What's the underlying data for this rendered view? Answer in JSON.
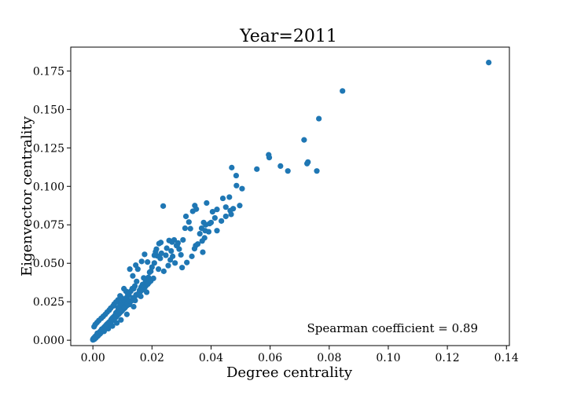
{
  "chart_data": {
    "type": "scatter",
    "title": "Year=2011",
    "xlabel": "Degree centrality",
    "ylabel": "Eigenvector centrality",
    "xlim": [
      -0.0075,
      0.141
    ],
    "ylim": [
      -0.0035,
      0.1905
    ],
    "xticks": [
      0.0,
      0.02,
      0.04,
      0.06,
      0.08,
      0.1,
      0.12,
      0.14
    ],
    "xtick_labels": [
      "0.00",
      "0.02",
      "0.04",
      "0.06",
      "0.08",
      "0.10",
      "0.12",
      "0.14"
    ],
    "yticks": [
      0.0,
      0.025,
      0.05,
      0.075,
      0.1,
      0.125,
      0.15,
      0.175
    ],
    "ytick_labels": [
      "0.000",
      "0.025",
      "0.050",
      "0.075",
      "0.100",
      "0.125",
      "0.150",
      "0.175"
    ],
    "grid": false,
    "legend": false,
    "annotation": "Spearman coefficient = 0.89",
    "marker_color": "#1f77b4",
    "x": [
      0.134,
      0.0845,
      0.0765,
      0.0715,
      0.0725,
      0.0728,
      0.0758,
      0.0595,
      0.0597,
      0.0555,
      0.0635,
      0.066,
      0.047,
      0.0485,
      0.0486,
      0.0505,
      0.044,
      0.0462,
      0.045,
      0.0468,
      0.0475,
      0.0497,
      0.042,
      0.045,
      0.0465,
      0.0385,
      0.0405,
      0.0413,
      0.0435,
      0.04,
      0.042,
      0.0375,
      0.0382,
      0.0395,
      0.0368,
      0.038,
      0.0392,
      0.0378,
      0.0362,
      0.037,
      0.0345,
      0.035,
      0.0338,
      0.0315,
      0.0325,
      0.033,
      0.0312,
      0.0305,
      0.0348,
      0.0355,
      0.0372,
      0.0288,
      0.0292,
      0.0298,
      0.0285,
      0.0275,
      0.0268,
      0.0265,
      0.027,
      0.0258,
      0.025,
      0.0247,
      0.0262,
      0.0283,
      0.0238,
      0.023,
      0.0232,
      0.0224,
      0.0218,
      0.0215,
      0.0208,
      0.0228,
      0.0208,
      0.02,
      0.0196,
      0.0212,
      0.0192,
      0.0188,
      0.0183,
      0.0178,
      0.0172,
      0.0168,
      0.0163,
      0.0158,
      0.0175,
      0.0185,
      0.0165,
      0.0152,
      0.0148,
      0.0142,
      0.0138,
      0.0145,
      0.0133,
      0.0128,
      0.0122,
      0.0125,
      0.0118,
      0.0113,
      0.0135,
      0.0108,
      0.0102,
      0.0098,
      0.0095,
      0.0092,
      0.0088,
      0.0085,
      0.0082,
      0.0078,
      0.0075,
      0.0072,
      0.0068,
      0.0065,
      0.0062,
      0.0058,
      0.0055,
      0.0052,
      0.0048,
      0.0045,
      0.0042,
      0.0038,
      0.0035,
      0.0032,
      0.0028,
      0.0025,
      0.0022,
      0.0018,
      0.0015,
      0.0012,
      0.0008,
      0.0005,
      0.0002,
      0.0,
      0.0,
      0.0003,
      0.0006,
      0.001,
      0.0013,
      0.0017,
      0.002,
      0.0024,
      0.0027,
      0.003,
      0.0033,
      0.0037,
      0.004,
      0.0043,
      0.0047,
      0.005,
      0.0053,
      0.0057,
      0.006,
      0.0063,
      0.0067,
      0.007,
      0.0073,
      0.0077,
      0.008,
      0.0083,
      0.0087,
      0.009,
      0.0093,
      0.0097,
      0.01,
      0.0103,
      0.0107,
      0.011,
      0.0115,
      0.012,
      0.0125,
      0.013,
      0.014,
      0.015,
      0.016,
      0.0155,
      0.017,
      0.018,
      0.019,
      0.0105,
      0.0112,
      0.0118,
      0.0092,
      0.0097,
      0.0085,
      0.0078,
      0.0072,
      0.0068,
      0.006,
      0.0055,
      0.0048,
      0.0042,
      0.0035,
      0.0028,
      0.002,
      0.0014,
      0.0008,
      0.0004,
      0.0015,
      0.003,
      0.0045,
      0.0062,
      0.0075,
      0.0088,
      0.0101,
      0.0123,
      0.0143,
      0.0162,
      0.0182,
      0.0138,
      0.0115,
      0.0095,
      0.0081,
      0.0066,
      0.0052,
      0.0038,
      0.0024,
      0.0011,
      0.0007,
      0.0016,
      0.0026,
      0.0036,
      0.0046,
      0.0056,
      0.0066,
      0.0076,
      0.0086,
      0.0096,
      0.0106,
      0.0116,
      0.0126,
      0.0136,
      0.0146,
      0.0156,
      0.0166,
      0.0176,
      0.0186,
      0.0196,
      0.0205,
      0.0222,
      0.024,
      0.0255,
      0.0278,
      0.0302,
      0.0318,
      0.0335,
      0.0344
    ],
    "y": [
      0.1805,
      0.162,
      0.144,
      0.1302,
      0.1148,
      0.1158,
      0.11,
      0.1205,
      0.1187,
      0.1112,
      0.1132,
      0.11,
      0.1122,
      0.107,
      0.1005,
      0.0985,
      0.0922,
      0.093,
      0.0865,
      0.0818,
      0.0855,
      0.0875,
      0.085,
      0.0805,
      0.0842,
      0.0892,
      0.0835,
      0.0795,
      0.0775,
      0.0765,
      0.0712,
      0.0765,
      0.075,
      0.0758,
      0.0728,
      0.0712,
      0.0705,
      0.0665,
      0.0692,
      0.0645,
      0.0875,
      0.0852,
      0.0838,
      0.0805,
      0.0768,
      0.0725,
      0.0728,
      0.0652,
      0.0615,
      0.0625,
      0.0572,
      0.0632,
      0.0592,
      0.0555,
      0.0615,
      0.0652,
      0.0638,
      0.058,
      0.0545,
      0.0648,
      0.0598,
      0.0552,
      0.0522,
      0.0615,
      0.0872,
      0.0635,
      0.0565,
      0.0628,
      0.0548,
      0.0592,
      0.0552,
      0.0532,
      0.0502,
      0.0475,
      0.0448,
      0.0575,
      0.0442,
      0.0408,
      0.0392,
      0.0378,
      0.0405,
      0.0362,
      0.0345,
      0.0325,
      0.0558,
      0.0508,
      0.0512,
      0.0462,
      0.0382,
      0.0352,
      0.0335,
      0.0488,
      0.0335,
      0.0318,
      0.0295,
      0.0462,
      0.0285,
      0.0275,
      0.0418,
      0.0262,
      0.0248,
      0.0225,
      0.0195,
      0.0235,
      0.0202,
      0.0212,
      0.0185,
      0.0178,
      0.0162,
      0.0155,
      0.0148,
      0.0142,
      0.0135,
      0.0122,
      0.0118,
      0.0112,
      0.0105,
      0.0098,
      0.0092,
      0.0085,
      0.0078,
      0.0072,
      0.0065,
      0.0058,
      0.0052,
      0.0045,
      0.0038,
      0.0032,
      0.0025,
      0.0018,
      0.0012,
      0.0006,
      0.0002,
      0.0004,
      0.0008,
      0.0015,
      0.0022,
      0.0028,
      0.0035,
      0.0042,
      0.0048,
      0.0055,
      0.0062,
      0.0068,
      0.0075,
      0.0082,
      0.0088,
      0.0095,
      0.0102,
      0.0108,
      0.0115,
      0.0122,
      0.0128,
      0.0135,
      0.0142,
      0.0148,
      0.0155,
      0.0162,
      0.0168,
      0.0175,
      0.0182,
      0.0188,
      0.0195,
      0.0202,
      0.0208,
      0.0215,
      0.0225,
      0.0235,
      0.0245,
      0.0255,
      0.0275,
      0.0295,
      0.0315,
      0.0305,
      0.0335,
      0.0355,
      0.0375,
      0.0335,
      0.0318,
      0.0302,
      0.0288,
      0.0275,
      0.0262,
      0.0248,
      0.0235,
      0.0222,
      0.0208,
      0.0195,
      0.0182,
      0.0168,
      0.0155,
      0.0142,
      0.0128,
      0.0115,
      0.0102,
      0.0088,
      0.0045,
      0.0072,
      0.0098,
      0.0125,
      0.0152,
      0.0178,
      0.0205,
      0.0232,
      0.0258,
      0.0285,
      0.0312,
      0.0218,
      0.0168,
      0.0132,
      0.0112,
      0.0092,
      0.0075,
      0.0058,
      0.0042,
      0.0025,
      0.0015,
      0.0035,
      0.0055,
      0.0075,
      0.0095,
      0.0115,
      0.0135,
      0.0155,
      0.0175,
      0.0195,
      0.0215,
      0.0235,
      0.0255,
      0.0275,
      0.0295,
      0.0305,
      0.0325,
      0.0345,
      0.0365,
      0.0385,
      0.0402,
      0.0462,
      0.0448,
      0.0485,
      0.0502,
      0.0472,
      0.0505,
      0.0545,
      0.0595
    ]
  }
}
